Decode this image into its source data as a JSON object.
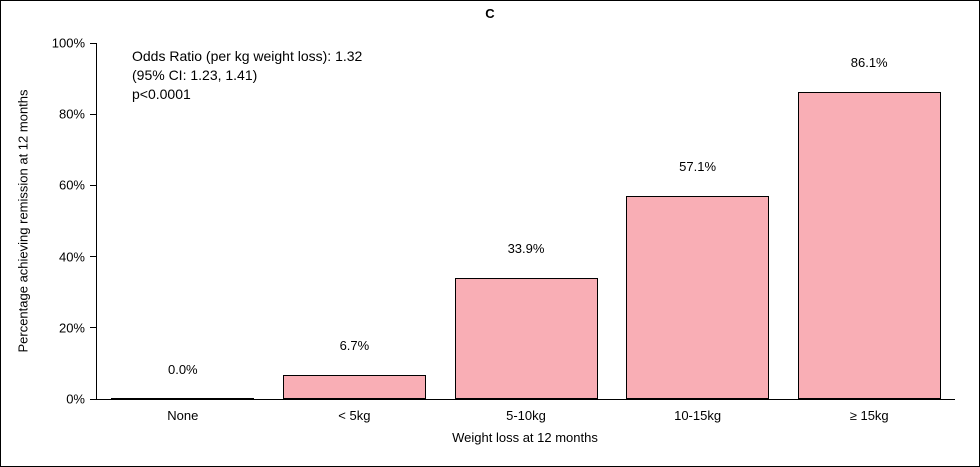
{
  "annotation": {
    "line1": "Odds Ratio (per kg weight loss): 1.32",
    "line2": "(95% CI: 1.23, 1.41)",
    "line3": "p<0.0001"
  },
  "chart_data": {
    "type": "bar",
    "title": "C",
    "categories": [
      "None",
      "< 5kg",
      "5-10kg",
      "10-15kg",
      "≥ 15kg"
    ],
    "values": [
      0.0,
      6.7,
      33.9,
      57.1,
      86.1
    ],
    "value_labels": [
      "0.0%",
      "6.7%",
      "33.9%",
      "57.1%",
      "86.1%"
    ],
    "xlabel": "Weight loss at 12 months",
    "ylabel": "Percentage achieving remission at 12 months",
    "ylim": [
      0,
      100
    ],
    "ytick_values": [
      0,
      20,
      40,
      60,
      80,
      100
    ],
    "yticks": [
      "0%",
      "20%",
      "40%",
      "60%",
      "80%",
      "100%"
    ],
    "grid": false,
    "legend": "none",
    "bar_color": "#F9AEB5",
    "bar_border": "#000000"
  }
}
